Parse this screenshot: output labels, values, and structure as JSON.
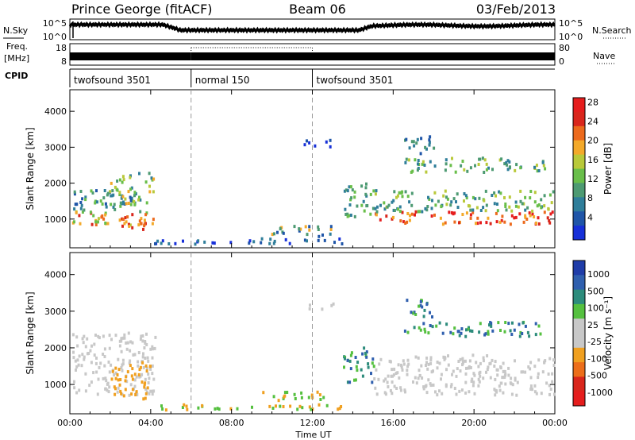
{
  "header": {
    "station": "Prince George (fitACF)",
    "beam": "Beam 06",
    "date": "03/Feb/2013"
  },
  "side_labels": {
    "nsky": "N.Sky",
    "freq_line1": "Freq.",
    "freq_line2": "[MHz]",
    "cpid": "CPID",
    "nsearch": "N.Search",
    "nave": "Nave"
  },
  "small_ticks": {
    "nsky_left": [
      "10^5",
      "10^0"
    ],
    "nsky_right": [
      "10^5",
      "10^0"
    ],
    "freq_left": [
      "18",
      "8"
    ],
    "nave_right": [
      "80",
      "0"
    ]
  },
  "cpid_segments": [
    {
      "start_hour": 0,
      "end_hour": 6,
      "label": "twofsound 3501"
    },
    {
      "start_hour": 6,
      "end_hour": 12,
      "label": "normal 150"
    },
    {
      "start_hour": 12,
      "end_hour": 24,
      "label": "twofsound 3501"
    }
  ],
  "colors": {
    "power_scale": [
      "#1730d8",
      "#1f55a8",
      "#2f7e9a",
      "#4d9a72",
      "#69be4a",
      "#b9c93a",
      "#f3a92a",
      "#ec6a1d",
      "#d9261c",
      "#e51d1d"
    ],
    "velocity_scale": [
      "#1f3ca8",
      "#2f5fae",
      "#2d8c7c",
      "#55c03f",
      "#c8c8c8",
      "#c8c8c8",
      "#f0a020",
      "#ec6e1a",
      "#d9261c",
      "#e51d1d"
    ]
  },
  "chart_data": [
    {
      "type": "heatmap",
      "name": "power",
      "xlabel": "",
      "ylabel": "Slant Range [km]",
      "xlim": [
        0,
        24
      ],
      "ylim": [
        200,
        4600
      ],
      "yticks": [
        1000,
        2000,
        3000,
        4000
      ],
      "xticks_hours": [
        0,
        4,
        8,
        12,
        16,
        20,
        24
      ],
      "xtick_labels": [
        "00:00",
        "04:00",
        "08:00",
        "12:00",
        "16:00",
        "20:00",
        "00:00"
      ],
      "colorbar": {
        "label": "Power [dB]",
        "ticks": [
          "4",
          "8",
          "12",
          "16",
          "20",
          "24",
          "28"
        ]
      }
    },
    {
      "type": "heatmap",
      "name": "velocity",
      "xlabel": "Time UT",
      "ylabel": "Slant Range [km]",
      "xlim": [
        0,
        24
      ],
      "ylim": [
        200,
        4600
      ],
      "yticks": [
        1000,
        2000,
        3000,
        4000
      ],
      "xticks_hours": [
        0,
        4,
        8,
        12,
        16,
        20,
        24
      ],
      "xtick_labels": [
        "00:00",
        "04:00",
        "08:00",
        "12:00",
        "16:00",
        "20:00",
        "00:00"
      ],
      "colorbar": {
        "label": "Velocity [m s⁻¹]",
        "ticks": [
          "1000",
          "500",
          "100",
          "25",
          "-25",
          "-100",
          "-500",
          "-1000"
        ]
      }
    }
  ]
}
